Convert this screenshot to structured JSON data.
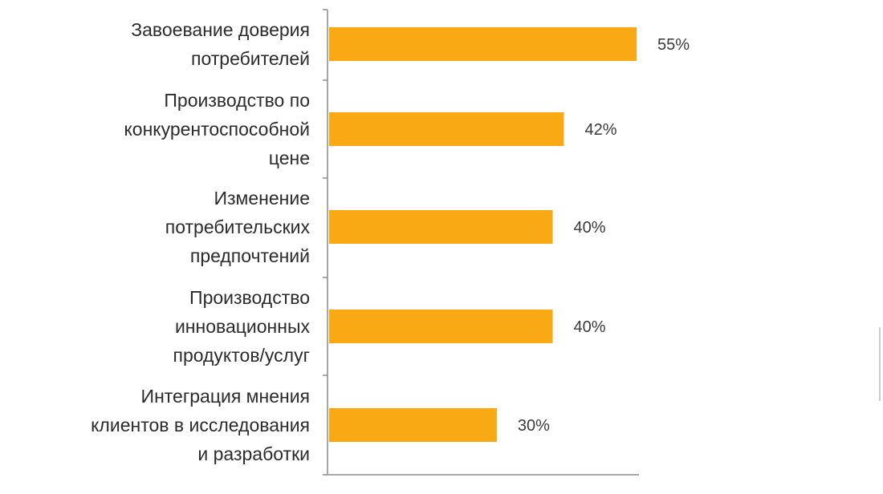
{
  "chart_data": {
    "type": "bar",
    "orientation": "horizontal",
    "categories": [
      [
        "Завоевание доверия",
        "потребителей"
      ],
      [
        "Производство по",
        "конкурентоспособной",
        "цене"
      ],
      [
        "Изменение",
        "потребительских",
        "предпочтений"
      ],
      [
        "Производство",
        "инновационных",
        "продуктов/услуг"
      ],
      [
        "Интеграция мнения",
        "клиентов в исследования",
        "и разработки"
      ]
    ],
    "values": [
      55,
      42,
      40,
      40,
      30
    ],
    "value_labels": [
      "55%",
      "42%",
      "40%",
      "40%",
      "30%"
    ],
    "title": "",
    "xlabel": "",
    "ylabel": "",
    "xlim": [
      0,
      55
    ],
    "grid": false,
    "legend": "none",
    "bar_color": "#F9A914"
  }
}
